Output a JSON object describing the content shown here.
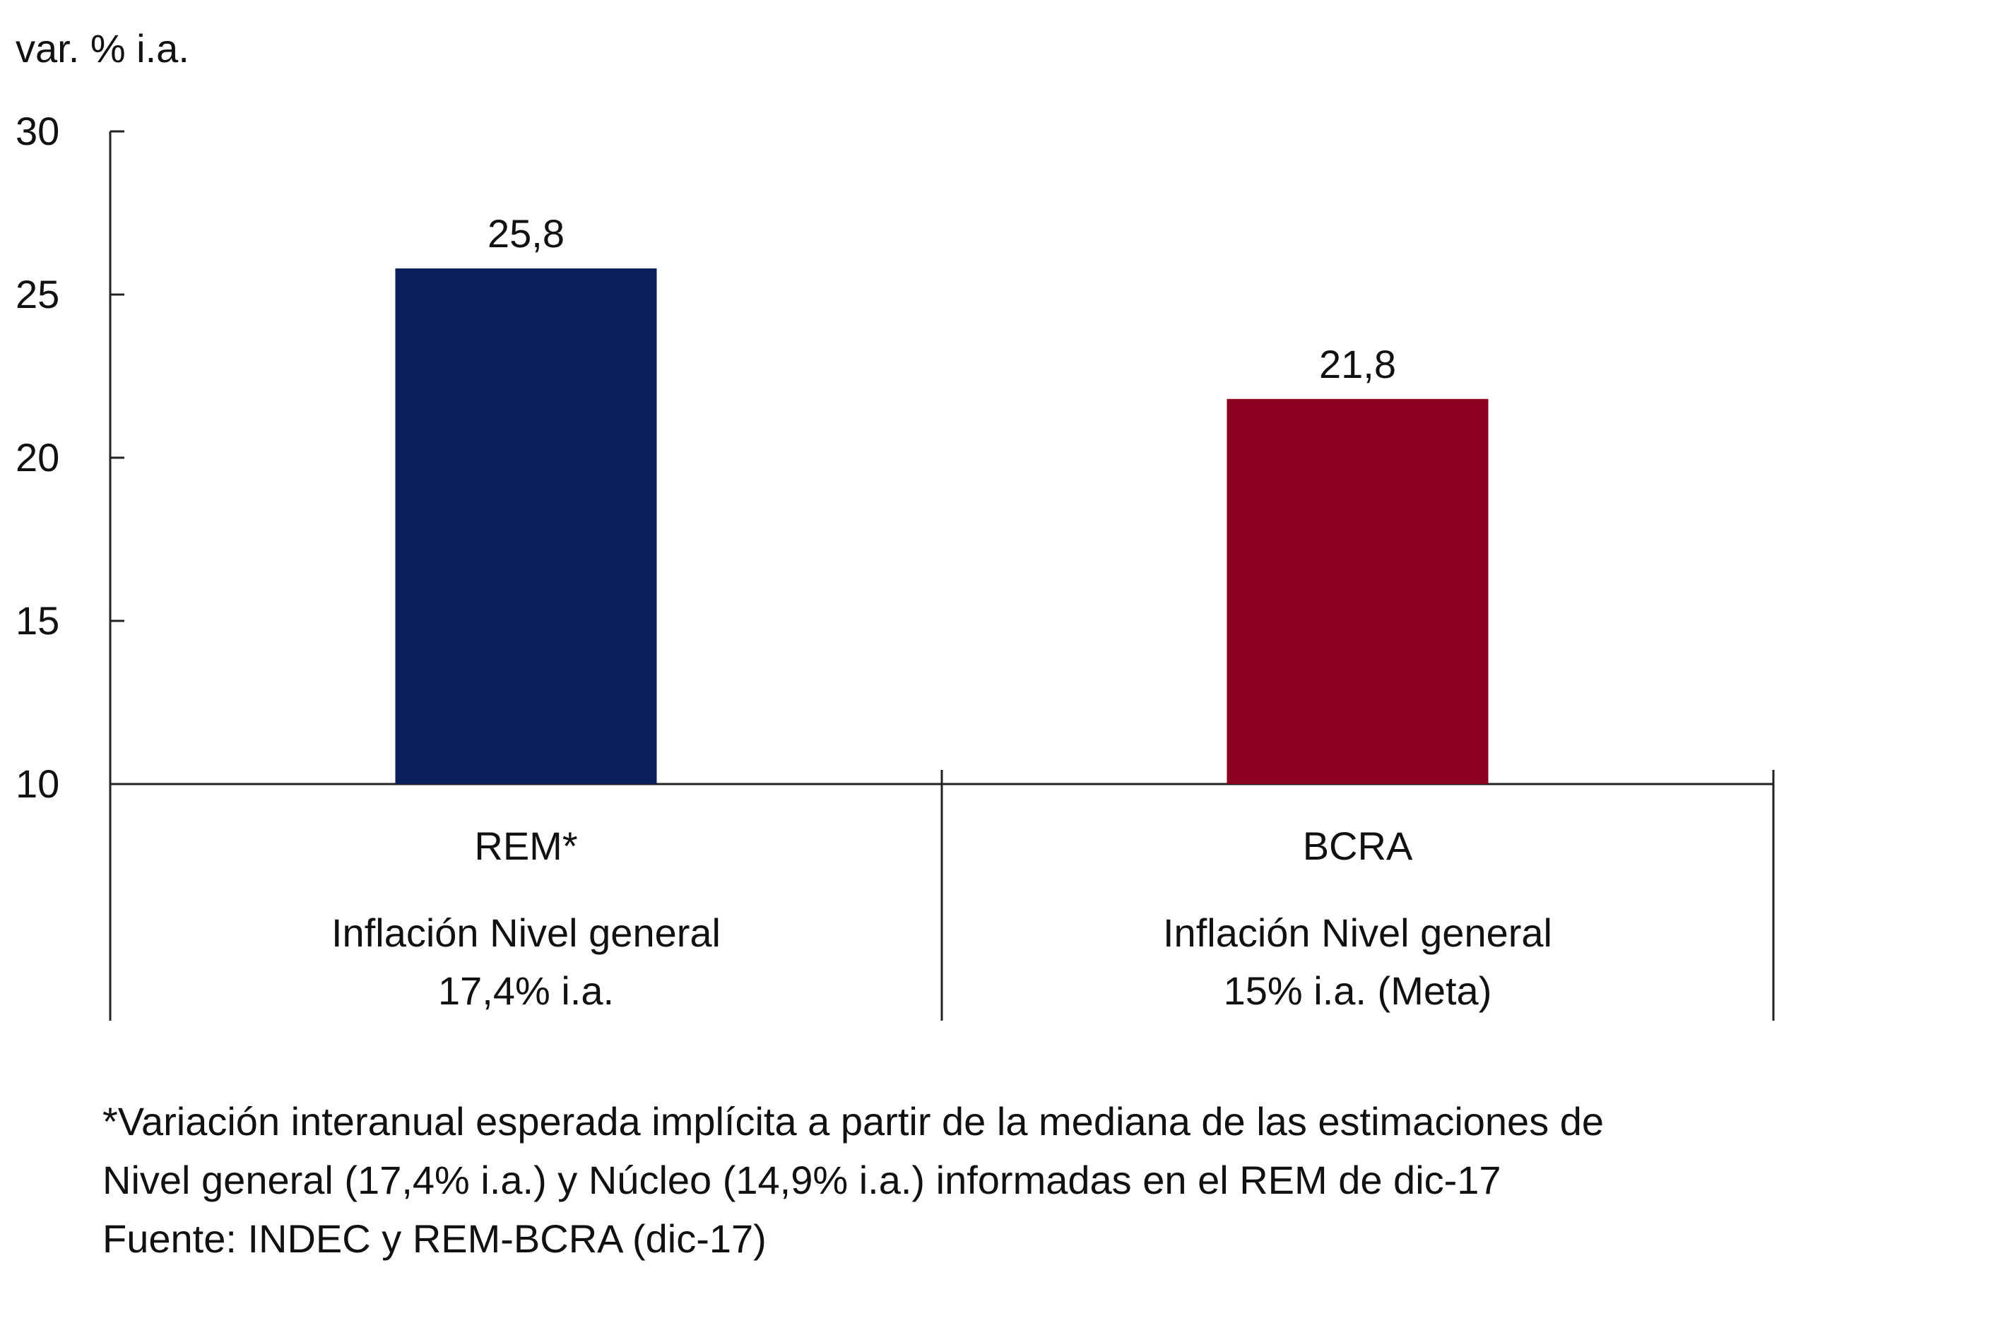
{
  "chart_data": {
    "type": "bar",
    "ylabel": "var. % i.a.",
    "ylim": [
      10,
      30
    ],
    "yticks": [
      10,
      15,
      20,
      25,
      30
    ],
    "ytick_labels": [
      "10",
      "15",
      "20",
      "25",
      "30"
    ],
    "categories": [
      {
        "name": "REM*",
        "line1": "Inflación Nivel general",
        "line2": "17,4% i.a.",
        "value": 25.8,
        "value_label": "25,8",
        "color": "#0b1f5a"
      },
      {
        "name": "BCRA",
        "line1": "Inflación Nivel general",
        "line2": "15% i.a. (Meta)",
        "value": 21.8,
        "value_label": "21,8",
        "color": "#8b001e"
      }
    ]
  },
  "notes": {
    "line1": "*Variación interanual esperada implícita a partir de la mediana de las estimaciones de",
    "line2": "Nivel general (17,4% i.a.) y Núcleo (14,9% i.a.) informadas en el REM de dic-17",
    "line3": "Fuente: INDEC y REM-BCRA (dic-17)"
  }
}
